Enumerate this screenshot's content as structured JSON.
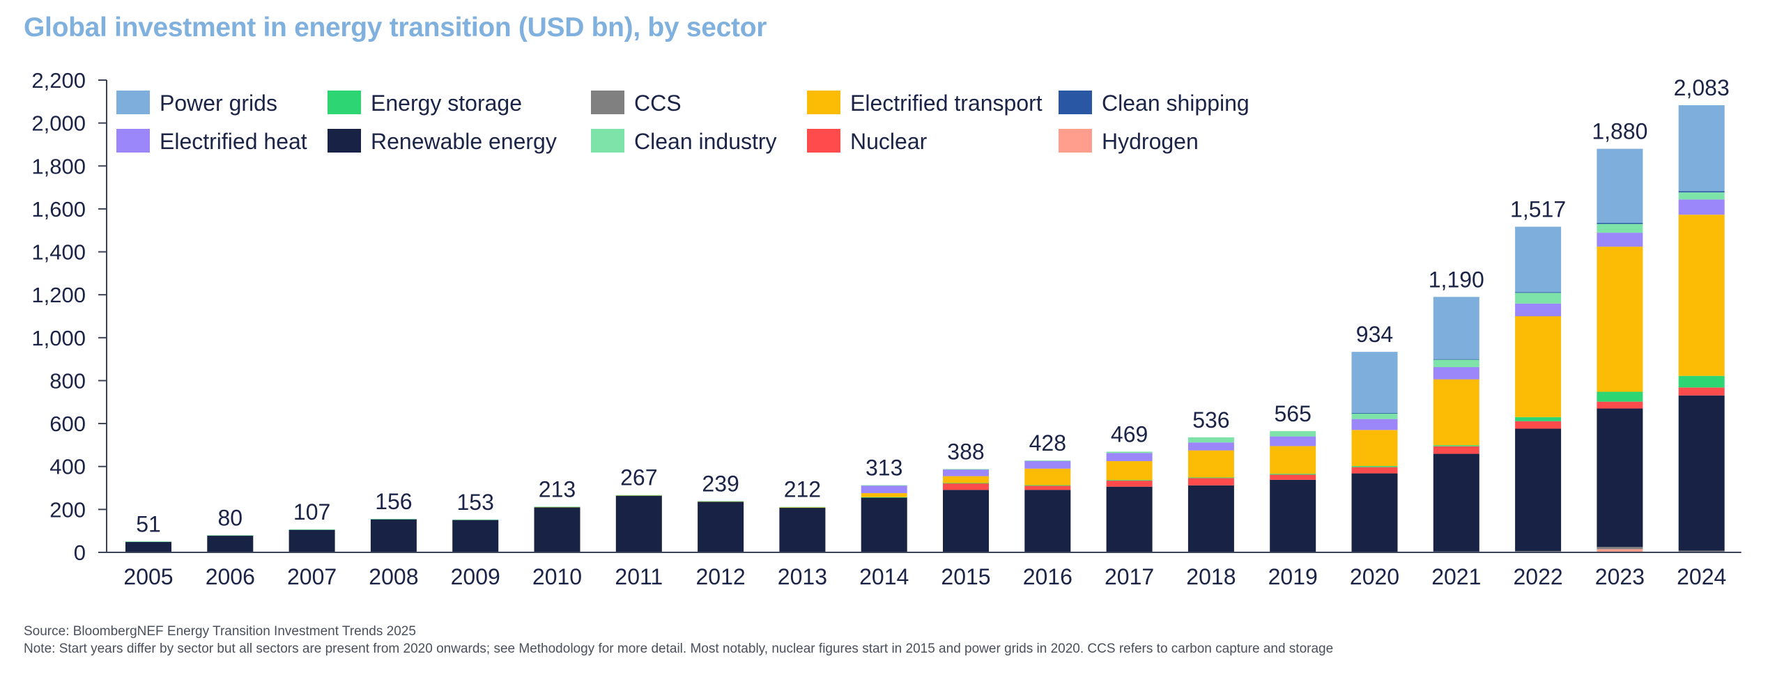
{
  "title": "Global investment in energy transition (USD bn), by sector",
  "footer": {
    "source": "Source: BloombergNEF Energy Transition Investment Trends 2025",
    "note": "Note: Start years differ by sector but all sectors are present from 2020 onwards; see Methodology for more detail. Most notably, nuclear figures start in 2015 and power grids in 2020. CCS refers to carbon capture and storage"
  },
  "chart_data": {
    "type": "bar",
    "stacked": true,
    "title": "Global investment in energy transition (USD bn), by sector",
    "xlabel": "",
    "ylabel": "",
    "ylim": [
      0,
      2200
    ],
    "yticks": [
      0,
      200,
      400,
      600,
      800,
      1000,
      1200,
      1400,
      1600,
      1800,
      2000,
      2200
    ],
    "ytick_labels": [
      "0",
      "200",
      "400",
      "600",
      "800",
      "1,000",
      "1,200",
      "1,400",
      "1,600",
      "1,800",
      "2,000",
      "2,200"
    ],
    "grid": false,
    "legend_position": "top-left",
    "categories": [
      "2005",
      "2006",
      "2007",
      "2008",
      "2009",
      "2010",
      "2011",
      "2012",
      "2013",
      "2014",
      "2015",
      "2016",
      "2017",
      "2018",
      "2019",
      "2020",
      "2021",
      "2022",
      "2023",
      "2024"
    ],
    "totals": [
      51,
      80,
      107,
      156,
      153,
      213,
      267,
      239,
      212,
      313,
      388,
      428,
      469,
      536,
      565,
      934,
      1190,
      1517,
      1880,
      2083
    ],
    "total_labels": [
      "51",
      "80",
      "107",
      "156",
      "153",
      "213",
      "267",
      "239",
      "212",
      "313",
      "388",
      "428",
      "469",
      "536",
      "565",
      "934",
      "1,190",
      "1,517",
      "1,880",
      "2,083"
    ],
    "legend_order": [
      "Power grids",
      "Electrified heat",
      "Energy storage",
      "Renewable energy",
      "CCS",
      "Clean industry",
      "Electrified transport",
      "Nuclear",
      "Clean shipping",
      "Hydrogen"
    ],
    "series": [
      {
        "name": "Hydrogen",
        "color": "#FF9E8C",
        "values": [
          0,
          0,
          0,
          0,
          0,
          0,
          0,
          0,
          0,
          0,
          0,
          0,
          0,
          0,
          0,
          1,
          2,
          3,
          15,
          3
        ]
      },
      {
        "name": "CCS",
        "color": "#808080",
        "values": [
          0,
          0,
          0,
          0,
          0,
          0,
          0,
          0,
          0,
          1,
          0,
          0,
          0,
          0,
          0,
          2,
          2,
          3,
          10,
          5
        ]
      },
      {
        "name": "Renewable energy",
        "color": "#172245",
        "values": [
          50,
          79,
          106,
          155,
          152,
          211,
          265,
          237,
          208,
          255,
          291,
          291,
          306,
          312,
          338,
          365,
          455,
          570,
          645,
          723
        ]
      },
      {
        "name": "Nuclear",
        "color": "#FF4B4B",
        "values": [
          0,
          0,
          0,
          0,
          0,
          0,
          0,
          0,
          0,
          0,
          31,
          19,
          28,
          34,
          24,
          29,
          35,
          35,
          32,
          37
        ]
      },
      {
        "name": "Energy storage",
        "color": "#2ED573",
        "values": [
          0,
          0,
          0,
          0,
          0,
          0,
          0,
          0,
          0,
          1,
          1,
          3,
          3,
          3,
          4,
          5,
          5,
          19,
          46,
          54
        ]
      },
      {
        "name": "Electrified transport",
        "color": "#FCBC05",
        "values": [
          0,
          0,
          0,
          0,
          0,
          1,
          1,
          1,
          2,
          19,
          32,
          77,
          88,
          126,
          129,
          168,
          307,
          470,
          676,
          751
        ]
      },
      {
        "name": "Electrified heat",
        "color": "#9B86FA",
        "values": [
          0,
          0,
          0,
          0,
          0,
          0,
          0,
          0,
          0,
          35,
          31,
          36,
          38,
          37,
          45,
          51,
          57,
          59,
          65,
          71
        ]
      },
      {
        "name": "Clean industry",
        "color": "#7DE3A8",
        "values": [
          1,
          1,
          1,
          1,
          1,
          1,
          1,
          1,
          2,
          2,
          2,
          2,
          6,
          24,
          25,
          27,
          35,
          50,
          41,
          33
        ]
      },
      {
        "name": "Clean shipping",
        "color": "#2957A4",
        "values": [
          0,
          0,
          0,
          0,
          0,
          0,
          0,
          0,
          0,
          0,
          0,
          0,
          0,
          0,
          0,
          1,
          2,
          3,
          5,
          6
        ]
      },
      {
        "name": "Power grids",
        "color": "#7EAEDB",
        "values": [
          0,
          0,
          0,
          0,
          0,
          0,
          0,
          0,
          0,
          0,
          0,
          0,
          0,
          0,
          0,
          285,
          290,
          305,
          345,
          400
        ]
      }
    ]
  }
}
